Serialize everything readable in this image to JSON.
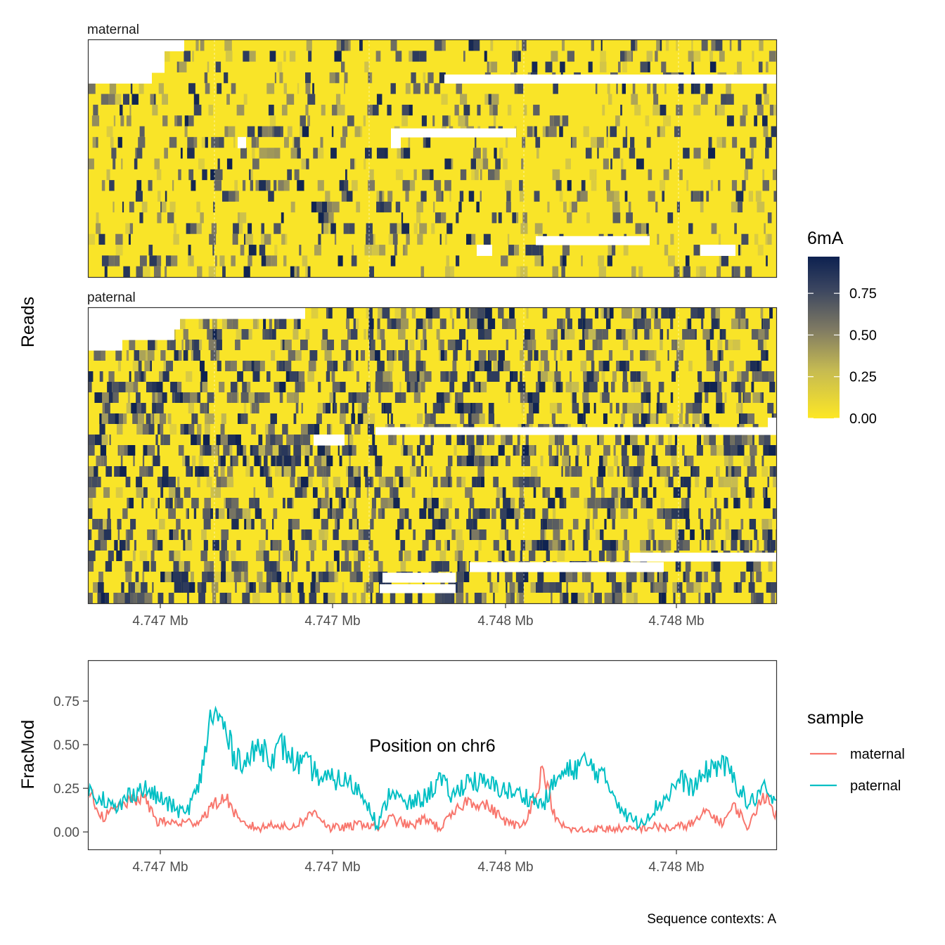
{
  "chart_data": [
    {
      "type": "heatmap",
      "panels": [
        "maternal",
        "paternal"
      ],
      "ylabel": "Reads",
      "x_tick_labels": [
        "4.747 Mb",
        "4.747 Mb",
        "4.748 Mb",
        "4.748 Mb"
      ],
      "fill_legend": {
        "title": "6mA",
        "breaks": [
          "0.75",
          "0.50",
          "0.25",
          "0.00"
        ],
        "range": [
          0,
          0.97
        ],
        "color_low": "#fde725",
        "color_mid": "#7f7a63",
        "color_high": "#0d2150"
      },
      "rows": {
        "maternal": {
          "mean_modification": 0.12,
          "read_count": 22
        },
        "paternal": {
          "mean_modification": 0.32,
          "read_count": 28
        }
      }
    },
    {
      "type": "line",
      "xlabel": "Position on chr6",
      "ylabel": "FracMod",
      "x_tick_labels": [
        "4.747 Mb",
        "4.747 Mb",
        "4.748 Mb",
        "4.748 Mb"
      ],
      "y_ticks": [
        "0.75",
        "0.50",
        "0.25",
        "0.00"
      ],
      "ylim": [
        -0.1,
        0.98
      ],
      "legend": {
        "title": "sample",
        "position": "right"
      },
      "series": [
        {
          "name": "maternal",
          "color": "#f8766d",
          "anchors": [
            [
              0,
              0.25
            ],
            [
              0.02,
              0.08
            ],
            [
              0.05,
              0.16
            ],
            [
              0.08,
              0.2
            ],
            [
              0.1,
              0.06
            ],
            [
              0.13,
              0.05
            ],
            [
              0.16,
              0.06
            ],
            [
              0.18,
              0.15
            ],
            [
              0.2,
              0.2
            ],
            [
              0.22,
              0.05
            ],
            [
              0.25,
              0.02
            ],
            [
              0.27,
              0.05
            ],
            [
              0.29,
              0.02
            ],
            [
              0.31,
              0.06
            ],
            [
              0.33,
              0.12
            ],
            [
              0.35,
              0.02
            ],
            [
              0.38,
              0.03
            ],
            [
              0.4,
              0.05
            ],
            [
              0.42,
              0.02
            ],
            [
              0.44,
              0.08
            ],
            [
              0.47,
              0.03
            ],
            [
              0.49,
              0.08
            ],
            [
              0.51,
              0.02
            ],
            [
              0.53,
              0.1
            ],
            [
              0.55,
              0.18
            ],
            [
              0.58,
              0.15
            ],
            [
              0.61,
              0.05
            ],
            [
              0.63,
              0.03
            ],
            [
              0.65,
              0.2
            ],
            [
              0.66,
              0.37
            ],
            [
              0.68,
              0.06
            ],
            [
              0.7,
              0.01
            ],
            [
              0.73,
              0.01
            ],
            [
              0.76,
              0.02
            ],
            [
              0.79,
              0.01
            ],
            [
              0.82,
              0.03
            ],
            [
              0.85,
              0.02
            ],
            [
              0.88,
              0.05
            ],
            [
              0.9,
              0.12
            ],
            [
              0.92,
              0.05
            ],
            [
              0.94,
              0.15
            ],
            [
              0.96,
              0.02
            ],
            [
              0.98,
              0.22
            ],
            [
              1.0,
              0.1
            ]
          ]
        },
        {
          "name": "paternal",
          "color": "#00bfc4",
          "anchors": [
            [
              0,
              0.23
            ],
            [
              0.02,
              0.2
            ],
            [
              0.04,
              0.12
            ],
            [
              0.06,
              0.22
            ],
            [
              0.08,
              0.25
            ],
            [
              0.1,
              0.2
            ],
            [
              0.12,
              0.15
            ],
            [
              0.14,
              0.1
            ],
            [
              0.16,
              0.25
            ],
            [
              0.175,
              0.6
            ],
            [
              0.18,
              0.68
            ],
            [
              0.195,
              0.62
            ],
            [
              0.21,
              0.45
            ],
            [
              0.23,
              0.4
            ],
            [
              0.25,
              0.5
            ],
            [
              0.27,
              0.42
            ],
            [
              0.28,
              0.5
            ],
            [
              0.3,
              0.4
            ],
            [
              0.32,
              0.38
            ],
            [
              0.34,
              0.3
            ],
            [
              0.37,
              0.3
            ],
            [
              0.39,
              0.25
            ],
            [
              0.41,
              0.15
            ],
            [
              0.42,
              0.02
            ],
            [
              0.44,
              0.25
            ],
            [
              0.46,
              0.15
            ],
            [
              0.49,
              0.2
            ],
            [
              0.51,
              0.3
            ],
            [
              0.53,
              0.2
            ],
            [
              0.55,
              0.3
            ],
            [
              0.57,
              0.28
            ],
            [
              0.6,
              0.25
            ],
            [
              0.62,
              0.22
            ],
            [
              0.64,
              0.2
            ],
            [
              0.66,
              0.15
            ],
            [
              0.68,
              0.3
            ],
            [
              0.7,
              0.35
            ],
            [
              0.72,
              0.4
            ],
            [
              0.74,
              0.35
            ],
            [
              0.76,
              0.25
            ],
            [
              0.78,
              0.1
            ],
            [
              0.8,
              0.05
            ],
            [
              0.82,
              0.12
            ],
            [
              0.84,
              0.2
            ],
            [
              0.86,
              0.3
            ],
            [
              0.88,
              0.25
            ],
            [
              0.9,
              0.35
            ],
            [
              0.92,
              0.4
            ],
            [
              0.94,
              0.3
            ],
            [
              0.96,
              0.15
            ],
            [
              0.98,
              0.25
            ],
            [
              1.0,
              0.15
            ]
          ]
        }
      ]
    }
  ],
  "caption": "Sequence contexts: A"
}
